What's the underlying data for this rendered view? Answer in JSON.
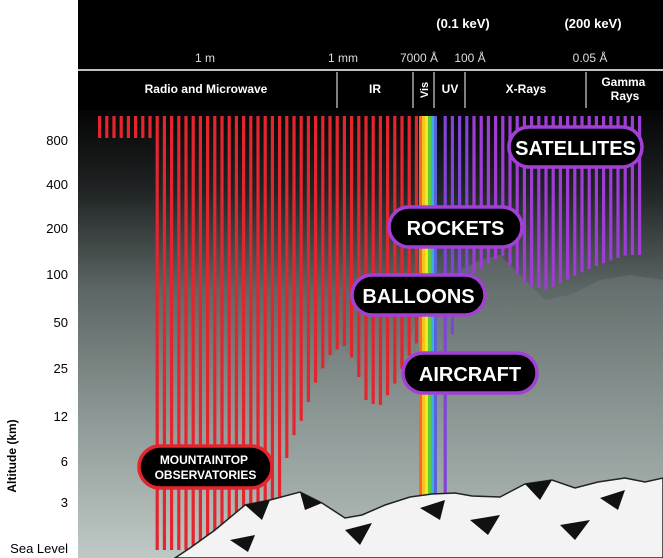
{
  "energy_labels": [
    "(0.1 keV)",
    "(200 keV)"
  ],
  "wavelength_labels": [
    "1 m",
    "1 mm",
    "7000 Å",
    "100 Å",
    "0.05 Å"
  ],
  "bands": [
    {
      "name": "Radio and Microwave",
      "color": "#e3262e"
    },
    {
      "name": "IR",
      "color": "#d82a3a"
    },
    {
      "name": "Vis",
      "color": "#f7e21c"
    },
    {
      "name": "UV",
      "color": "#7b4fd6"
    },
    {
      "name": "X-Rays",
      "color": "#9a3ad8"
    },
    {
      "name": "Gamma Rays",
      "color": "#a33dd6"
    }
  ],
  "altitude_axis": {
    "title": "Altitude (km)",
    "ticks": [
      "800",
      "400",
      "200",
      "100",
      "50",
      "25",
      "12",
      "6",
      "3",
      "Sea Level"
    ]
  },
  "platforms": [
    {
      "key": "satellites",
      "label": "SATELLITES",
      "border": "#9d3fd0"
    },
    {
      "key": "rockets",
      "label": "ROCKETS",
      "border": "#9d3fd0"
    },
    {
      "key": "balloons",
      "label": "BALLOONS",
      "border": "#9d3fd0"
    },
    {
      "key": "aircraft",
      "label": "AIRCRAFT",
      "border": "#9d3fd0"
    },
    {
      "key": "mountaintop",
      "label": "MOUNTAINTOP OBSERVATORIES",
      "border": "#e3262e"
    }
  ],
  "colors": {
    "header_bg": "#000000",
    "sky_top": "#0a0a0a",
    "sky_bottom": "#b9c4c0",
    "mountain": "#f4f4f4"
  }
}
